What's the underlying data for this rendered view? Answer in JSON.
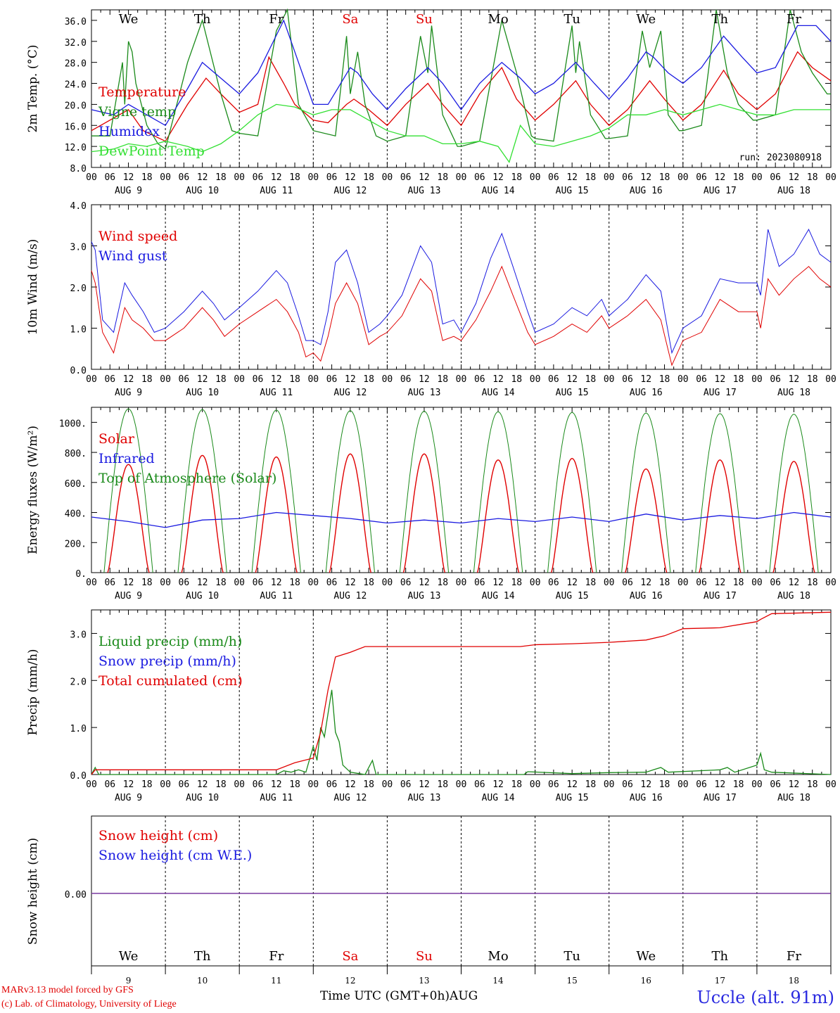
{
  "run_label": "run: 2023080918",
  "x_axis_title": "Time UTC (GMT+0h)",
  "x_axis_month": "AUG",
  "credits": [
    "MARv3.13 model forced by GFS",
    "(c) Lab. of Climatology, University of Liege"
  ],
  "station": "Uccle (alt. 91m)",
  "weekdays": [
    {
      "label": "We",
      "color": "#000000"
    },
    {
      "label": "Th",
      "color": "#000000"
    },
    {
      "label": "Fr",
      "color": "#000000"
    },
    {
      "label": "Sa",
      "color": "#e00000"
    },
    {
      "label": "Su",
      "color": "#e00000"
    },
    {
      "label": "Mo",
      "color": "#000000"
    },
    {
      "label": "Tu",
      "color": "#000000"
    },
    {
      "label": "We",
      "color": "#000000"
    },
    {
      "label": "Th",
      "color": "#000000"
    },
    {
      "label": "Fr",
      "color": "#000000"
    }
  ],
  "days": [
    "9",
    "10",
    "11",
    "12",
    "13",
    "14",
    "15",
    "16",
    "17",
    "18"
  ],
  "date_labels": [
    "AUG  9",
    "AUG 10",
    "AUG 11",
    "AUG 12",
    "AUG 13",
    "AUG 14",
    "AUG 15",
    "AUG 16",
    "AUG 17",
    "AUG 18"
  ],
  "hour_ticks": [
    "00",
    "06",
    "12",
    "18"
  ],
  "chart_data": [
    {
      "type": "line",
      "ylabel": "2m Temp. (°C)",
      "ylim": [
        8,
        38
      ],
      "yticks": [
        "8.0",
        "12.0",
        "16.0",
        "20.0",
        "24.0",
        "28.0",
        "32.0",
        "36.0"
      ],
      "x_unit": "days since Aug 9 00 UTC",
      "series": [
        {
          "name": "Temperature",
          "color": "#e00000",
          "x": [
            0,
            0.5,
            0.7,
            1,
            1.3,
            1.55,
            1.75,
            2,
            2.25,
            2.4,
            2.6,
            2.75,
            3,
            3.2,
            3.45,
            3.55,
            3.75,
            4,
            4.25,
            4.55,
            4.75,
            5,
            5.25,
            5.55,
            5.75,
            6,
            6.25,
            6.55,
            6.75,
            7,
            7.25,
            7.55,
            7.75,
            8,
            8.25,
            8.55,
            8.75,
            9,
            9.25,
            9.55,
            9.75,
            10
          ],
          "y": [
            15,
            19,
            15,
            13,
            20,
            25,
            22,
            18.5,
            20,
            29,
            24,
            20,
            17,
            16.5,
            20,
            21,
            19,
            16,
            20,
            24,
            20,
            16,
            22,
            27,
            21,
            17,
            20,
            24.5,
            20,
            16,
            19,
            24.5,
            21,
            17,
            20,
            26.5,
            22,
            19,
            22,
            30,
            27,
            24.5
          ]
        },
        {
          "name": "Vigne temp",
          "color": "#1a8a1a",
          "x": [
            0,
            0.25,
            0.42,
            0.45,
            0.5,
            0.55,
            0.6,
            0.75,
            0.9,
            1,
            1.3,
            1.5,
            1.75,
            1.9,
            2,
            2.25,
            2.5,
            2.65,
            2.8,
            3,
            3.3,
            3.45,
            3.5,
            3.6,
            3.7,
            3.85,
            4,
            4.25,
            4.45,
            4.55,
            4.6,
            4.75,
            4.95,
            5,
            5.25,
            5.55,
            5.75,
            5.95,
            6,
            6.25,
            6.5,
            6.55,
            6.6,
            6.75,
            6.95,
            7,
            7.25,
            7.45,
            7.55,
            7.7,
            7.8,
            7.95,
            8,
            8.25,
            8.45,
            8.6,
            8.75,
            8.95,
            9,
            9.25,
            9.45,
            9.6,
            9.75,
            9.95,
            10
          ],
          "y": [
            14,
            14,
            28,
            20,
            32,
            30,
            24,
            16,
            12.5,
            11.5,
            28,
            36,
            22,
            15,
            14.5,
            14,
            34,
            38,
            20,
            15,
            14,
            33,
            22,
            30,
            20,
            14,
            13,
            14,
            33,
            26,
            35,
            18,
            12,
            12,
            13,
            36,
            26,
            14,
            13.5,
            13,
            35,
            26,
            32,
            18,
            13.5,
            13.5,
            14,
            34,
            27,
            34,
            18,
            15,
            15,
            16,
            38,
            26,
            20,
            17,
            17,
            18,
            38,
            30,
            26,
            22,
            22
          ]
        },
        {
          "name": "Humidex",
          "color": "#1a1ae0",
          "x": [
            0,
            0.3,
            0.5,
            0.75,
            1,
            1.3,
            1.5,
            1.75,
            2,
            2.25,
            2.6,
            2.8,
            3,
            3.2,
            3.5,
            3.6,
            3.8,
            4,
            4.25,
            4.55,
            4.75,
            5,
            5.25,
            5.55,
            5.8,
            6,
            6.25,
            6.55,
            6.8,
            7,
            7.25,
            7.5,
            7.6,
            7.8,
            8,
            8.25,
            8.55,
            8.8,
            9,
            9.25,
            9.55,
            9.8,
            10
          ],
          "y": [
            19,
            18,
            20,
            18,
            16,
            23,
            28,
            25,
            22,
            26,
            36,
            28,
            20,
            20,
            27,
            26,
            22,
            19,
            23,
            27,
            24,
            19,
            24,
            28,
            25,
            22,
            24,
            28,
            24,
            21,
            25,
            30,
            29,
            26,
            24,
            27,
            33,
            29,
            26,
            27,
            35,
            35,
            32
          ]
        },
        {
          "name": "DewPoint Temp",
          "color": "#33e033",
          "x": [
            0,
            0.3,
            0.5,
            0.75,
            1,
            1.3,
            1.5,
            1.75,
            2,
            2.25,
            2.5,
            2.75,
            3,
            3.25,
            3.5,
            3.75,
            4,
            4.25,
            4.5,
            4.75,
            5,
            5.25,
            5.5,
            5.65,
            5.8,
            6,
            6.25,
            6.5,
            6.75,
            7,
            7.25,
            7.5,
            7.75,
            8,
            8.25,
            8.5,
            8.75,
            9,
            9.25,
            9.5,
            9.75,
            10
          ],
          "y": [
            11,
            11.5,
            12.5,
            12,
            13,
            12,
            11,
            12.5,
            15,
            18,
            20,
            19.5,
            18,
            19,
            19,
            17,
            15,
            14,
            14,
            12.5,
            12.5,
            13,
            12,
            9,
            16,
            12.5,
            12,
            13,
            14,
            15.5,
            18,
            18,
            19,
            18,
            19,
            20,
            19,
            18,
            18,
            19,
            19,
            19
          ]
        }
      ],
      "legend": [
        "Temperature",
        "Vigne temp",
        "Humidex",
        "DewPoint Temp"
      ]
    },
    {
      "type": "line",
      "ylabel": "10m Wind (m/s)",
      "ylim": [
        0,
        4
      ],
      "yticks": [
        "0.0",
        "1.0",
        "2.0",
        "3.0",
        "4.0"
      ],
      "series": [
        {
          "name": "Wind speed",
          "color": "#e00000",
          "x": [
            0,
            0.05,
            0.15,
            0.3,
            0.45,
            0.55,
            0.7,
            0.85,
            1,
            1.25,
            1.5,
            1.65,
            1.8,
            2,
            2.25,
            2.5,
            2.65,
            2.8,
            2.9,
            3,
            3.1,
            3.2,
            3.3,
            3.45,
            3.6,
            3.75,
            3.9,
            4,
            4.2,
            4.45,
            4.6,
            4.75,
            4.9,
            5,
            5.2,
            5.4,
            5.55,
            5.7,
            5.9,
            6,
            6.25,
            6.5,
            6.7,
            6.9,
            7,
            7.25,
            7.5,
            7.7,
            7.85,
            8,
            8.25,
            8.5,
            8.75,
            9,
            9.05,
            9.15,
            9.3,
            9.5,
            9.7,
            9.85,
            10
          ],
          "y": [
            2.4,
            2.1,
            0.9,
            0.4,
            1.5,
            1.2,
            1.0,
            0.7,
            0.7,
            1.0,
            1.5,
            1.2,
            0.8,
            1.1,
            1.4,
            1.7,
            1.4,
            0.9,
            0.3,
            0.4,
            0.2,
            0.8,
            1.6,
            2.1,
            1.6,
            0.6,
            0.8,
            0.9,
            1.3,
            2.2,
            1.9,
            0.7,
            0.8,
            0.7,
            1.2,
            1.9,
            2.5,
            1.8,
            0.9,
            0.6,
            0.8,
            1.1,
            0.9,
            1.3,
            1.0,
            1.3,
            1.7,
            1.2,
            0.1,
            0.7,
            0.9,
            1.7,
            1.4,
            1.4,
            1.0,
            2.2,
            1.8,
            2.2,
            2.5,
            2.2,
            2.0
          ]
        },
        {
          "name": "Wind gust",
          "color": "#1a1ae0",
          "x": [
            0,
            0.05,
            0.15,
            0.3,
            0.45,
            0.55,
            0.7,
            0.85,
            1,
            1.25,
            1.5,
            1.65,
            1.8,
            2,
            2.25,
            2.5,
            2.65,
            2.8,
            2.9,
            3,
            3.1,
            3.2,
            3.3,
            3.45,
            3.6,
            3.75,
            3.9,
            4,
            4.2,
            4.45,
            4.6,
            4.75,
            4.9,
            5,
            5.2,
            5.4,
            5.55,
            5.7,
            5.9,
            6,
            6.25,
            6.5,
            6.7,
            6.9,
            7,
            7.25,
            7.5,
            7.7,
            7.85,
            8,
            8.25,
            8.5,
            8.75,
            9,
            9.05,
            9.15,
            9.3,
            9.5,
            9.7,
            9.85,
            10
          ],
          "y": [
            3.1,
            2.9,
            1.2,
            0.9,
            2.1,
            1.8,
            1.4,
            0.9,
            1.0,
            1.4,
            1.9,
            1.6,
            1.2,
            1.5,
            1.9,
            2.4,
            2.1,
            1.3,
            0.7,
            0.7,
            0.6,
            1.4,
            2.6,
            2.9,
            2.1,
            0.9,
            1.1,
            1.3,
            1.8,
            3.0,
            2.6,
            1.1,
            1.2,
            0.9,
            1.6,
            2.7,
            3.3,
            2.5,
            1.4,
            0.9,
            1.1,
            1.5,
            1.3,
            1.7,
            1.3,
            1.7,
            2.3,
            1.9,
            0.4,
            1.0,
            1.3,
            2.2,
            2.1,
            2.1,
            1.8,
            3.4,
            2.5,
            2.8,
            3.4,
            2.8,
            2.6
          ]
        }
      ],
      "legend": [
        "Wind speed",
        "Wind gust"
      ]
    },
    {
      "type": "line",
      "ylabel": "Energy fluxes (W/m²)",
      "ylim": [
        0,
        1100
      ],
      "yticks": [
        "0.",
        "200.",
        "400.",
        "600.",
        "800.",
        "1000."
      ],
      "solar_peaks": [
        720,
        780,
        770,
        790,
        790,
        750,
        760,
        690,
        750,
        740
      ],
      "toa_peaks": [
        1090,
        1085,
        1082,
        1078,
        1074,
        1070,
        1066,
        1062,
        1058,
        1054
      ],
      "series": [
        {
          "name": "Solar",
          "color": "#e00000"
        },
        {
          "name": "Infrared",
          "color": "#1a1ae0",
          "x": [
            0,
            0.5,
            1,
            1.5,
            2,
            2.5,
            3,
            3.5,
            4,
            4.5,
            5,
            5.5,
            6,
            6.5,
            7,
            7.5,
            8,
            8.5,
            9,
            9.5,
            10
          ],
          "y": [
            370,
            340,
            300,
            350,
            360,
            400,
            380,
            360,
            330,
            350,
            330,
            360,
            340,
            370,
            340,
            390,
            350,
            380,
            360,
            400,
            370
          ]
        },
        {
          "name": "Top of Atmosphere (Solar)",
          "color": "#1a8a1a"
        }
      ],
      "legend": [
        "Solar",
        "Infrared",
        "Top of Atmosphere (Solar)"
      ]
    },
    {
      "type": "line",
      "ylabel": "Precip (mm/h)",
      "ylim": [
        0,
        3.5
      ],
      "yticks": [
        "0.0",
        "1.0",
        "2.0",
        "3.0"
      ],
      "series": [
        {
          "name": "Liquid precip (mm/h)",
          "color": "#1a8a1a",
          "x": [
            0,
            0.05,
            0.1,
            2.5,
            2.6,
            2.7,
            2.8,
            2.9,
            3.0,
            3.05,
            3.1,
            3.15,
            3.2,
            3.25,
            3.3,
            3.35,
            3.4,
            3.5,
            3.7,
            3.8,
            3.85,
            4,
            5.85,
            5.9,
            6.5,
            7,
            7.5,
            7.6,
            7.7,
            7.8,
            8.5,
            8.6,
            8.7,
            9.0,
            9.05,
            9.1,
            9.2,
            10
          ],
          "y": [
            0,
            0.15,
            0,
            0,
            0.08,
            0.05,
            0.1,
            0.05,
            0.6,
            0.3,
            1.0,
            0.8,
            1.3,
            1.8,
            0.9,
            0.7,
            0.2,
            0.05,
            0,
            0.3,
            0,
            0,
            0,
            0.06,
            0.02,
            0.04,
            0.05,
            0.1,
            0.15,
            0.05,
            0.1,
            0.15,
            0.05,
            0.2,
            0.45,
            0.1,
            0.05,
            0
          ]
        },
        {
          "name": "Snow precip (mm/h)",
          "color": "#1a1ae0"
        },
        {
          "name": "Total cumulated (cm)",
          "color": "#e00000",
          "x": [
            0,
            0.05,
            2.5,
            2.75,
            3.0,
            3.1,
            3.2,
            3.3,
            3.5,
            3.7,
            4,
            5,
            5.8,
            6,
            6.5,
            7,
            7.5,
            7.75,
            8,
            8.5,
            9,
            9.05,
            9.2,
            10
          ],
          "y": [
            0,
            0.1,
            0.1,
            0.25,
            0.35,
            0.9,
            1.8,
            2.5,
            2.6,
            2.72,
            2.72,
            2.72,
            2.72,
            2.76,
            2.78,
            2.81,
            2.86,
            2.95,
            3.1,
            3.12,
            3.25,
            3.3,
            3.42,
            3.45
          ]
        }
      ],
      "legend": [
        "Liquid precip (mm/h)",
        "Snow precip (mm/h)",
        "Total cumulated (cm)"
      ]
    },
    {
      "type": "line",
      "ylabel": "Snow height (cm)",
      "yticks": [
        "0.00"
      ],
      "series": [
        {
          "name": "Snow height (cm)",
          "color": "#e00000",
          "x": [
            0,
            10
          ],
          "y": [
            0,
            0
          ]
        },
        {
          "name": "Snow height (cm W.E.)",
          "color": "#1a1ae0",
          "x": [
            0,
            10
          ],
          "y": [
            0,
            0
          ]
        }
      ],
      "legend": [
        "Snow height (cm)",
        "Snow height (cm W.E.)"
      ]
    }
  ]
}
